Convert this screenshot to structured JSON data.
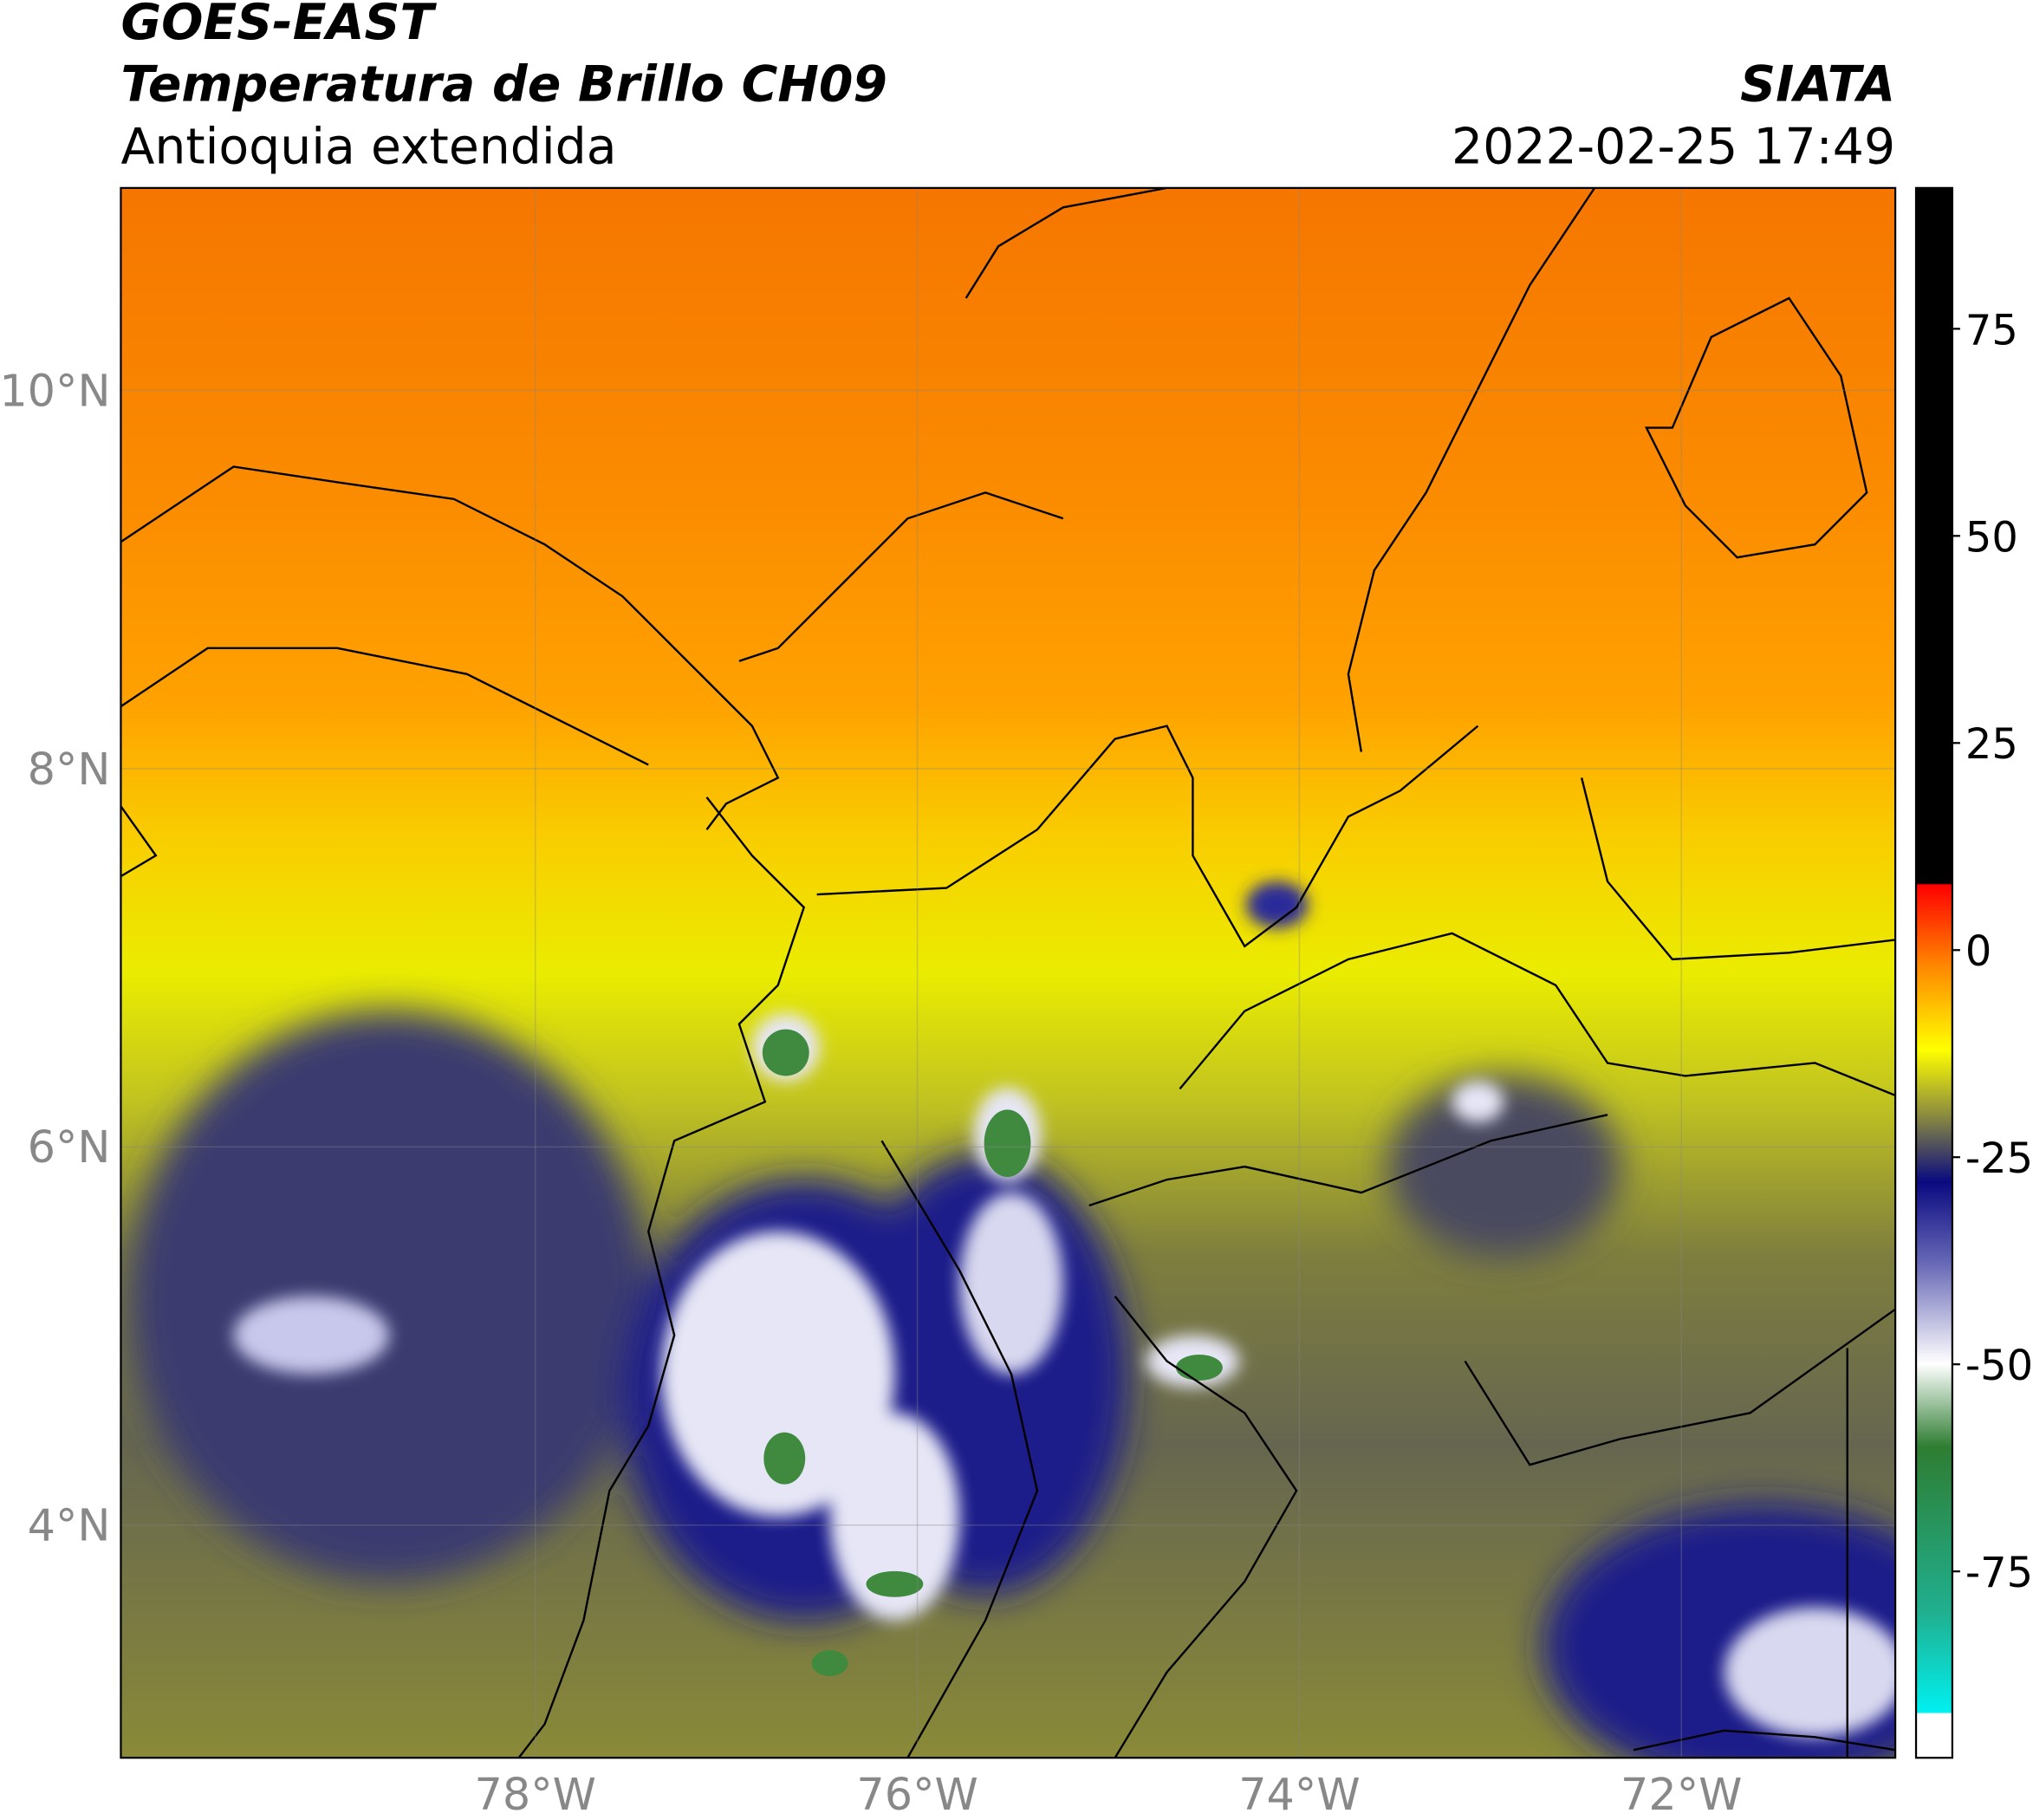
{
  "header": {
    "title": "GOES-EAST",
    "subtitle": "Temperatura de Brillo CH09",
    "region": "Antioquia extendida",
    "source": "SIATA",
    "datetime": "2022-02-25 17:49"
  },
  "map": {
    "lat_range": [
      2.77,
      11.07
    ],
    "lon_range": [
      -80.17,
      -70.88
    ],
    "lat_ticks": [
      {
        "value": 4,
        "label": "4°N"
      },
      {
        "value": 6,
        "label": "6°N"
      },
      {
        "value": 8,
        "label": "8°N"
      },
      {
        "value": 10,
        "label": "10°N"
      }
    ],
    "lon_ticks": [
      {
        "value": -78,
        "label": "78°W"
      },
      {
        "value": -76,
        "label": "76°W"
      },
      {
        "value": -74,
        "label": "74°W"
      },
      {
        "value": -72,
        "label": "72°W"
      }
    ]
  },
  "colorbar": {
    "range": [
      -97.5,
      92
    ],
    "ticks": [
      -75,
      -50,
      -25,
      0,
      25,
      50,
      75
    ]
  }
}
